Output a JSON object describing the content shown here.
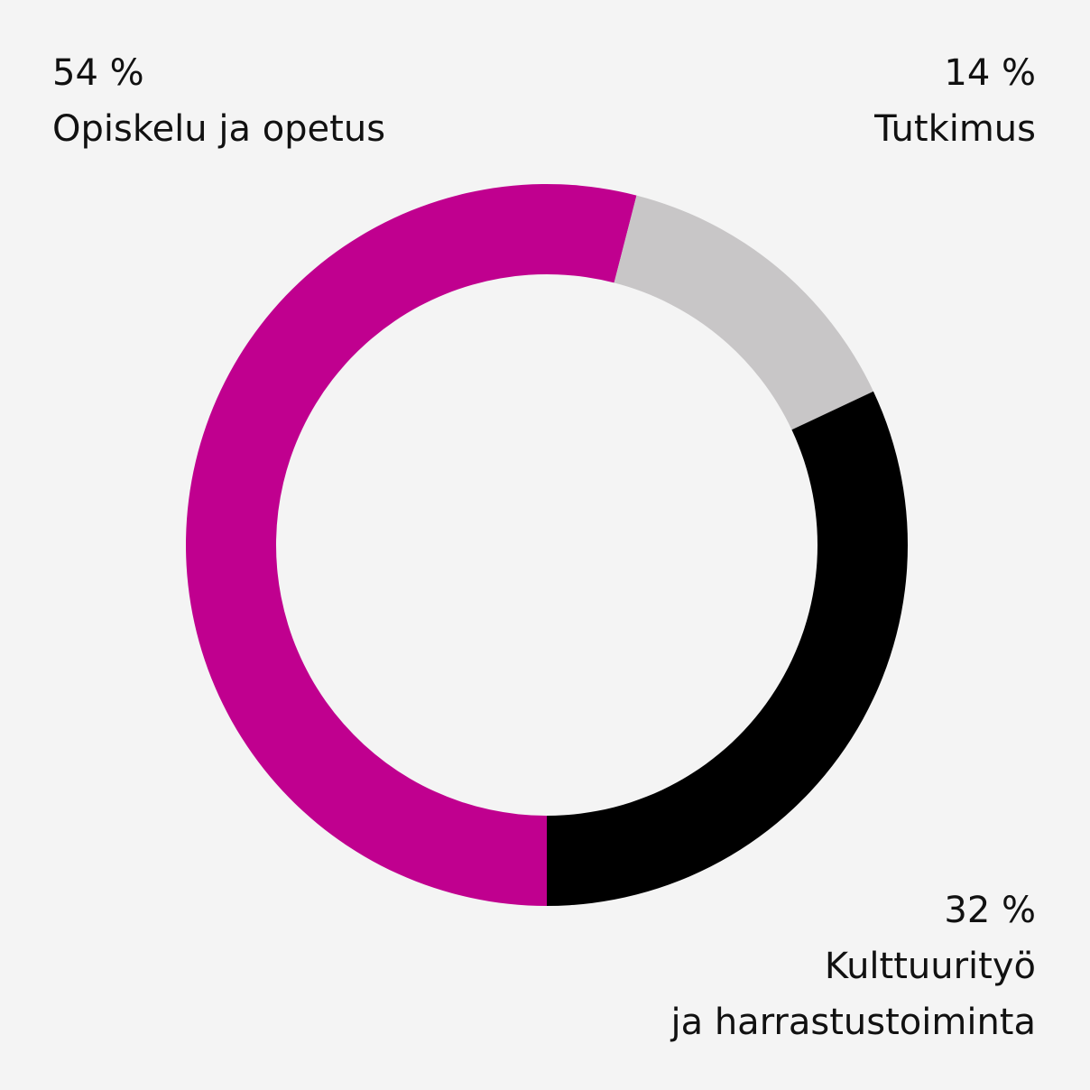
{
  "chart_data": {
    "type": "donut",
    "categories": [
      "Opiskelu ja opetus",
      "Tutkimus",
      "Kulttuurityö\nja harrastustoiminta"
    ],
    "values": [
      54,
      14,
      32
    ],
    "value_labels": [
      "54 %",
      "14 %",
      "32 %"
    ],
    "colors": [
      "#c0008f",
      "#c8c6c7",
      "#000000"
    ]
  }
}
